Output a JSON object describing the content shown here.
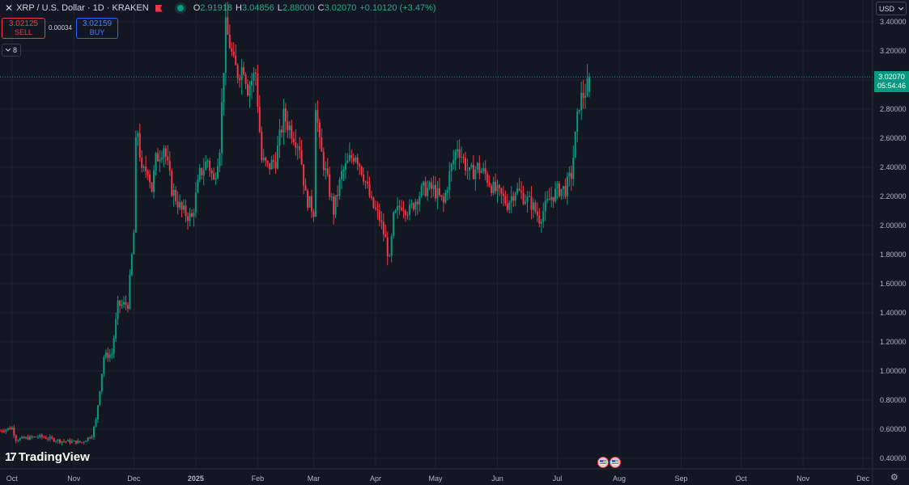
{
  "header": {
    "close_glyph": "✕",
    "symbol_title": "XRP / U.S. Dollar · 1D · KRAKEN",
    "ohlc": {
      "o_label": "O",
      "o_value": "2.91918",
      "h_label": "H",
      "h_value": "3.04856",
      "l_label": "L",
      "l_value": "2.88000",
      "c_label": "C",
      "c_value": "3.02070",
      "change": "+0.10120 (+3.47%)"
    }
  },
  "trade": {
    "sell_price": "3.02125",
    "sell_label": "SELL",
    "spread": "0.00034",
    "buy_price": "3.02159",
    "buy_label": "BUY"
  },
  "indicators_badge": {
    "count": "8"
  },
  "currency_selector": {
    "value": "USD"
  },
  "last_price": {
    "value": "3.02070",
    "countdown": "05:54:46"
  },
  "brand": {
    "logo_mark": "17",
    "name": "TradingView"
  },
  "settings_icon": "⚙",
  "colors": {
    "up": "#089981",
    "down": "#f23645",
    "background": "#131722",
    "grid": "#1f2331",
    "axis_text": "#b2b5be"
  },
  "chart_data": {
    "type": "candlestick",
    "title": "XRP / U.S. Dollar · 1D · KRAKEN",
    "interval": "1D",
    "x_labels": [
      "Oct",
      "Nov",
      "Dec",
      "2025",
      "Feb",
      "Mar",
      "Apr",
      "May",
      "Jun",
      "Jul",
      "Aug",
      "Sep",
      "Oct",
      "Nov",
      "Dec"
    ],
    "y_ticks": [
      "0.40000",
      "0.60000",
      "0.80000",
      "1.00000",
      "1.20000",
      "1.40000",
      "1.60000",
      "1.80000",
      "2.00000",
      "2.20000",
      "2.40000",
      "2.60000",
      "2.80000",
      "3.00000",
      "3.20000",
      "3.40000"
    ],
    "ylim": [
      0.4,
      3.4
    ],
    "x_range": [
      "2024-09-25",
      "2025-12-05"
    ],
    "last_close": 3.0207,
    "grid": true,
    "close_series": [
      [
        "2024-09-25",
        0.59
      ],
      [
        "2024-10-01",
        0.61
      ],
      [
        "2024-10-03",
        0.53
      ],
      [
        "2024-10-15",
        0.55
      ],
      [
        "2024-10-25",
        0.52
      ],
      [
        "2024-11-05",
        0.51
      ],
      [
        "2024-11-10",
        0.56
      ],
      [
        "2024-11-12",
        0.66
      ],
      [
        "2024-11-16",
        1.1
      ],
      [
        "2024-11-20",
        1.12
      ],
      [
        "2024-11-23",
        1.45
      ],
      [
        "2024-11-28",
        1.46
      ],
      [
        "2024-12-01",
        1.95
      ],
      [
        "2024-12-02",
        2.55
      ],
      [
        "2024-12-03",
        2.65
      ],
      [
        "2024-12-05",
        2.35
      ],
      [
        "2024-12-08",
        2.4
      ],
      [
        "2024-12-10",
        2.25
      ],
      [
        "2024-12-12",
        2.45
      ],
      [
        "2024-12-16",
        2.55
      ],
      [
        "2024-12-20",
        2.25
      ],
      [
        "2024-12-25",
        2.1
      ],
      [
        "2024-12-30",
        2.05
      ],
      [
        "2025-01-03",
        2.35
      ],
      [
        "2025-01-07",
        2.45
      ],
      [
        "2025-01-10",
        2.3
      ],
      [
        "2025-01-13",
        2.55
      ],
      [
        "2025-01-15",
        3.1
      ],
      [
        "2025-01-16",
        3.35
      ],
      [
        "2025-01-18",
        3.25
      ],
      [
        "2025-01-20",
        3.1
      ],
      [
        "2025-01-22",
        3.05
      ],
      [
        "2025-01-25",
        3.1
      ],
      [
        "2025-01-27",
        2.95
      ],
      [
        "2025-01-31",
        3.05
      ],
      [
        "2025-02-02",
        2.65
      ],
      [
        "2025-02-03",
        2.45
      ],
      [
        "2025-02-06",
        2.4
      ],
      [
        "2025-02-10",
        2.45
      ],
      [
        "2025-02-14",
        2.75
      ],
      [
        "2025-02-18",
        2.65
      ],
      [
        "2025-02-22",
        2.55
      ],
      [
        "2025-02-25",
        2.2
      ],
      [
        "2025-03-01",
        2.1
      ],
      [
        "2025-03-02",
        2.85
      ],
      [
        "2025-03-04",
        2.55
      ],
      [
        "2025-03-08",
        2.3
      ],
      [
        "2025-03-11",
        2.1
      ],
      [
        "2025-03-15",
        2.35
      ],
      [
        "2025-03-19",
        2.45
      ],
      [
        "2025-03-22",
        2.5
      ],
      [
        "2025-03-26",
        2.35
      ],
      [
        "2025-03-30",
        2.15
      ],
      [
        "2025-04-03",
        2.05
      ],
      [
        "2025-04-06",
        1.9
      ],
      [
        "2025-04-08",
        1.75
      ],
      [
        "2025-04-10",
        2.05
      ],
      [
        "2025-04-14",
        2.15
      ],
      [
        "2025-04-18",
        2.1
      ],
      [
        "2025-04-22",
        2.2
      ],
      [
        "2025-04-25",
        2.25
      ],
      [
        "2025-04-30",
        2.25
      ],
      [
        "2025-05-05",
        2.15
      ],
      [
        "2025-05-08",
        2.35
      ],
      [
        "2025-05-12",
        2.55
      ],
      [
        "2025-05-15",
        2.45
      ],
      [
        "2025-05-18",
        2.35
      ],
      [
        "2025-05-22",
        2.4
      ],
      [
        "2025-05-26",
        2.35
      ],
      [
        "2025-05-30",
        2.25
      ],
      [
        "2025-06-03",
        2.2
      ],
      [
        "2025-06-06",
        2.15
      ],
      [
        "2025-06-10",
        2.25
      ],
      [
        "2025-06-14",
        2.2
      ],
      [
        "2025-06-18",
        2.15
      ],
      [
        "2025-06-22",
        2.05
      ],
      [
        "2025-06-24",
        2.1
      ],
      [
        "2025-06-28",
        2.2
      ],
      [
        "2025-07-02",
        2.25
      ],
      [
        "2025-07-05",
        2.25
      ],
      [
        "2025-07-08",
        2.35
      ],
      [
        "2025-07-10",
        2.6
      ],
      [
        "2025-07-12",
        2.85
      ],
      [
        "2025-07-14",
        2.9
      ],
      [
        "2025-07-16",
        2.95
      ],
      [
        "2025-07-17",
        3.0207
      ]
    ]
  }
}
